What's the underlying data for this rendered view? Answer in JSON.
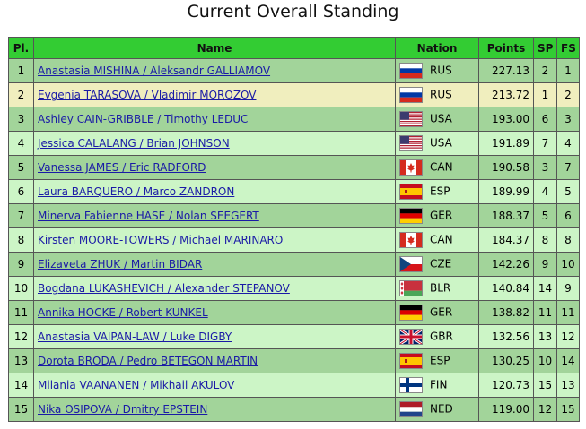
{
  "header": {
    "title": "Current Overall Standing"
  },
  "table": {
    "columns": [
      "Pl.",
      "Name",
      "Nation",
      "Points",
      "SP",
      "FS"
    ],
    "rows": [
      [
        1,
        "Anastasia MISHINA / Aleksandr GALLIAMOV",
        "RUS",
        "227.13",
        2,
        1
      ],
      [
        2,
        "Evgenia TARASOVA / Vladimir MOROZOV",
        "RUS",
        "213.72",
        1,
        2
      ],
      [
        3,
        "Ashley CAIN-GRIBBLE / Timothy LEDUC",
        "USA",
        "193.00",
        6,
        3
      ],
      [
        4,
        "Jessica CALALANG / Brian JOHNSON",
        "USA",
        "191.89",
        7,
        4
      ],
      [
        5,
        "Vanessa JAMES / Eric RADFORD",
        "CAN",
        "190.58",
        3,
        7
      ],
      [
        6,
        "Laura BARQUERO / Marco ZANDRON",
        "ESP",
        "189.99",
        4,
        5
      ],
      [
        7,
        "Minerva Fabienne HASE / Nolan SEEGERT",
        "GER",
        "188.37",
        5,
        6
      ],
      [
        8,
        "Kirsten MOORE-TOWERS / Michael MARINARO",
        "CAN",
        "184.37",
        8,
        8
      ],
      [
        9,
        "Elizaveta ZHUK / Martin BIDAR",
        "CZE",
        "142.26",
        9,
        10
      ],
      [
        10,
        "Bogdana LUKASHEVICH / Alexander STEPANOV",
        "BLR",
        "140.84",
        14,
        9
      ],
      [
        11,
        "Annika HOCKE / Robert KUNKEL",
        "GER",
        "138.82",
        11,
        11
      ],
      [
        12,
        "Anastasia VAIPAN-LAW / Luke DIGBY",
        "GBR",
        "132.56",
        13,
        12
      ],
      [
        13,
        "Dorota BRODA / Pedro BETEGON MARTIN",
        "ESP",
        "130.25",
        10,
        14
      ],
      [
        14,
        "Milania VAANANEN / Mikhail AKULOV",
        "FIN",
        "120.73",
        15,
        13
      ],
      [
        15,
        "Nika OSIPOVA / Dmitry EPSTEIN",
        "NED",
        "119.00",
        12,
        15
      ]
    ]
  }
}
